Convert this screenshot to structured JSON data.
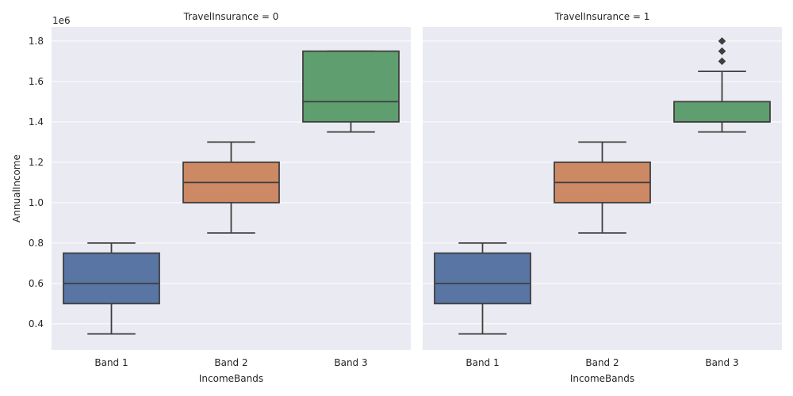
{
  "chart_data": {
    "type": "box",
    "xlabel": "IncomeBands",
    "ylabel": "AnnualIncome",
    "yscale_label": "1e6",
    "ylim": [
      0.27,
      1.87
    ],
    "yticks": [
      {
        "value": 0.4,
        "label": "0.4"
      },
      {
        "value": 0.6,
        "label": "0.6"
      },
      {
        "value": 0.8,
        "label": "0.8"
      },
      {
        "value": 1.0,
        "label": "1.0"
      },
      {
        "value": 1.2,
        "label": "1.2"
      },
      {
        "value": 1.4,
        "label": "1.4"
      },
      {
        "value": 1.6,
        "label": "1.6"
      },
      {
        "value": 1.8,
        "label": "1.8"
      }
    ],
    "categories": [
      "Band 1",
      "Band 2",
      "Band 3"
    ],
    "colors": [
      "#5875a4",
      "#cc8963",
      "#5f9e6e"
    ],
    "grid": true,
    "facets": [
      {
        "title": "TravelInsurance = 0",
        "boxes": [
          {
            "category": "Band 1",
            "whisker_low": 0.35,
            "q1": 0.5,
            "median": 0.6,
            "q3": 0.75,
            "whisker_high": 0.8,
            "outliers": []
          },
          {
            "category": "Band 2",
            "whisker_low": 0.85,
            "q1": 1.0,
            "median": 1.1,
            "q3": 1.2,
            "whisker_high": 1.3,
            "outliers": []
          },
          {
            "category": "Band 3",
            "whisker_low": 1.35,
            "q1": 1.4,
            "median": 1.5,
            "q3": 1.75,
            "whisker_high": 1.75,
            "outliers": []
          }
        ]
      },
      {
        "title": "TravelInsurance = 1",
        "boxes": [
          {
            "category": "Band 1",
            "whisker_low": 0.35,
            "q1": 0.5,
            "median": 0.6,
            "q3": 0.75,
            "whisker_high": 0.8,
            "outliers": []
          },
          {
            "category": "Band 2",
            "whisker_low": 0.85,
            "q1": 1.0,
            "median": 1.1,
            "q3": 1.2,
            "whisker_high": 1.3,
            "outliers": []
          },
          {
            "category": "Band 3",
            "whisker_low": 1.35,
            "q1": 1.4,
            "median": 1.4,
            "q3": 1.5,
            "whisker_high": 1.65,
            "outliers": [
              1.7,
              1.7,
              1.75,
              1.75,
              1.8,
              1.8
            ]
          }
        ]
      }
    ]
  }
}
